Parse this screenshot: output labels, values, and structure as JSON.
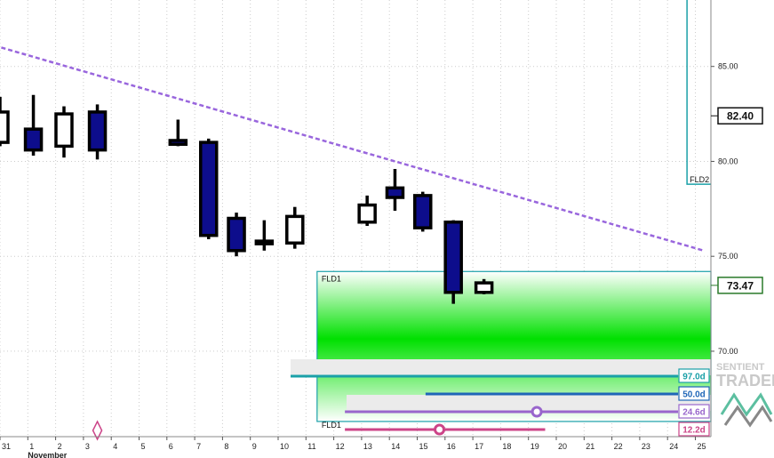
{
  "chart_data": {
    "type": "candlestick",
    "x_labels": [
      "31",
      "1",
      "2",
      "3",
      "4",
      "5",
      "6",
      "7",
      "8",
      "9",
      "10",
      "11",
      "12",
      "13",
      "14",
      "15",
      "16",
      "17",
      "18",
      "19",
      "20",
      "21",
      "22",
      "23",
      "24",
      "25"
    ],
    "month_label": "November",
    "ylim": [
      65.5,
      88.5
    ],
    "y_ticks": [
      "85.00",
      "80.00",
      "75.00",
      "70.00"
    ],
    "grid": true,
    "candles": [
      {
        "x": 0.0,
        "o": 81.0,
        "h": 83.4,
        "l": 80.8,
        "c": 82.6
      },
      {
        "x": 1.2,
        "o": 81.7,
        "h": 83.5,
        "l": 80.3,
        "c": 80.6
      },
      {
        "x": 2.3,
        "o": 80.8,
        "h": 82.9,
        "l": 80.2,
        "c": 82.5
      },
      {
        "x": 3.5,
        "o": 82.6,
        "h": 83.0,
        "l": 80.1,
        "c": 80.6
      },
      {
        "x": 6.4,
        "o": 81.1,
        "h": 82.2,
        "l": 80.8,
        "c": 80.9
      },
      {
        "x": 7.5,
        "o": 81.0,
        "h": 81.2,
        "l": 75.9,
        "c": 76.1
      },
      {
        "x": 8.5,
        "o": 77.0,
        "h": 77.3,
        "l": 75.0,
        "c": 75.3
      },
      {
        "x": 9.5,
        "o": 75.8,
        "h": 76.9,
        "l": 75.3,
        "c": 75.8
      },
      {
        "x": 10.6,
        "o": 75.7,
        "h": 77.6,
        "l": 75.4,
        "c": 77.1
      },
      {
        "x": 13.2,
        "o": 76.8,
        "h": 78.2,
        "l": 76.6,
        "c": 77.7
      },
      {
        "x": 14.2,
        "o": 78.6,
        "h": 79.6,
        "l": 77.4,
        "c": 78.1
      },
      {
        "x": 15.2,
        "o": 78.2,
        "h": 78.4,
        "l": 76.3,
        "c": 76.5
      },
      {
        "x": 16.3,
        "o": 76.8,
        "h": 76.9,
        "l": 72.5,
        "c": 73.1
      },
      {
        "x": 17.4,
        "o": 73.1,
        "h": 73.8,
        "l": 73.0,
        "c": 73.6
      }
    ],
    "trendline": {
      "from": [
        -0.2,
        86.1
      ],
      "to": [
        25.3,
        75.3
      ]
    },
    "price_labels": [
      {
        "value": 82.4,
        "text": "82.40"
      },
      {
        "value": 73.47,
        "text": "73.47"
      }
    ],
    "fld1": {
      "label_top": "FLD1",
      "label_bottom": "FLD1",
      "x_start": 11.4,
      "y_top": 74.2,
      "y_bottom": 66.3
    },
    "fld2": {
      "label": "FLD2",
      "x": 24.7,
      "y_top": 88.5,
      "y_bottom": 78.8
    },
    "cycles": [
      {
        "text": "97.0d",
        "color": "#1aa0a8",
        "x_start": 10.4,
        "x_end": 25.0
      },
      {
        "text": "50.0d",
        "color": "#1f66b8",
        "x_start": 15.3,
        "x_end": 25.0
      },
      {
        "text": "24.6d",
        "color": "#9966cc",
        "x_start": 12.4,
        "x_end": 25.0,
        "marker_x": 19.3
      },
      {
        "text": "12.2d",
        "color": "#cc4488",
        "x_start": 12.4,
        "x_end": 19.6,
        "marker_x": 15.8
      }
    ],
    "diamond_x": 3.5
  },
  "logo": {
    "line1": "SENTIENT",
    "line2": "TRADER"
  },
  "colors": {
    "bear": "#0d0d8c",
    "grid": "#cccccc",
    "trend": "#9966dd",
    "fld_border": "#1aa0a8",
    "green": "#00e000"
  }
}
